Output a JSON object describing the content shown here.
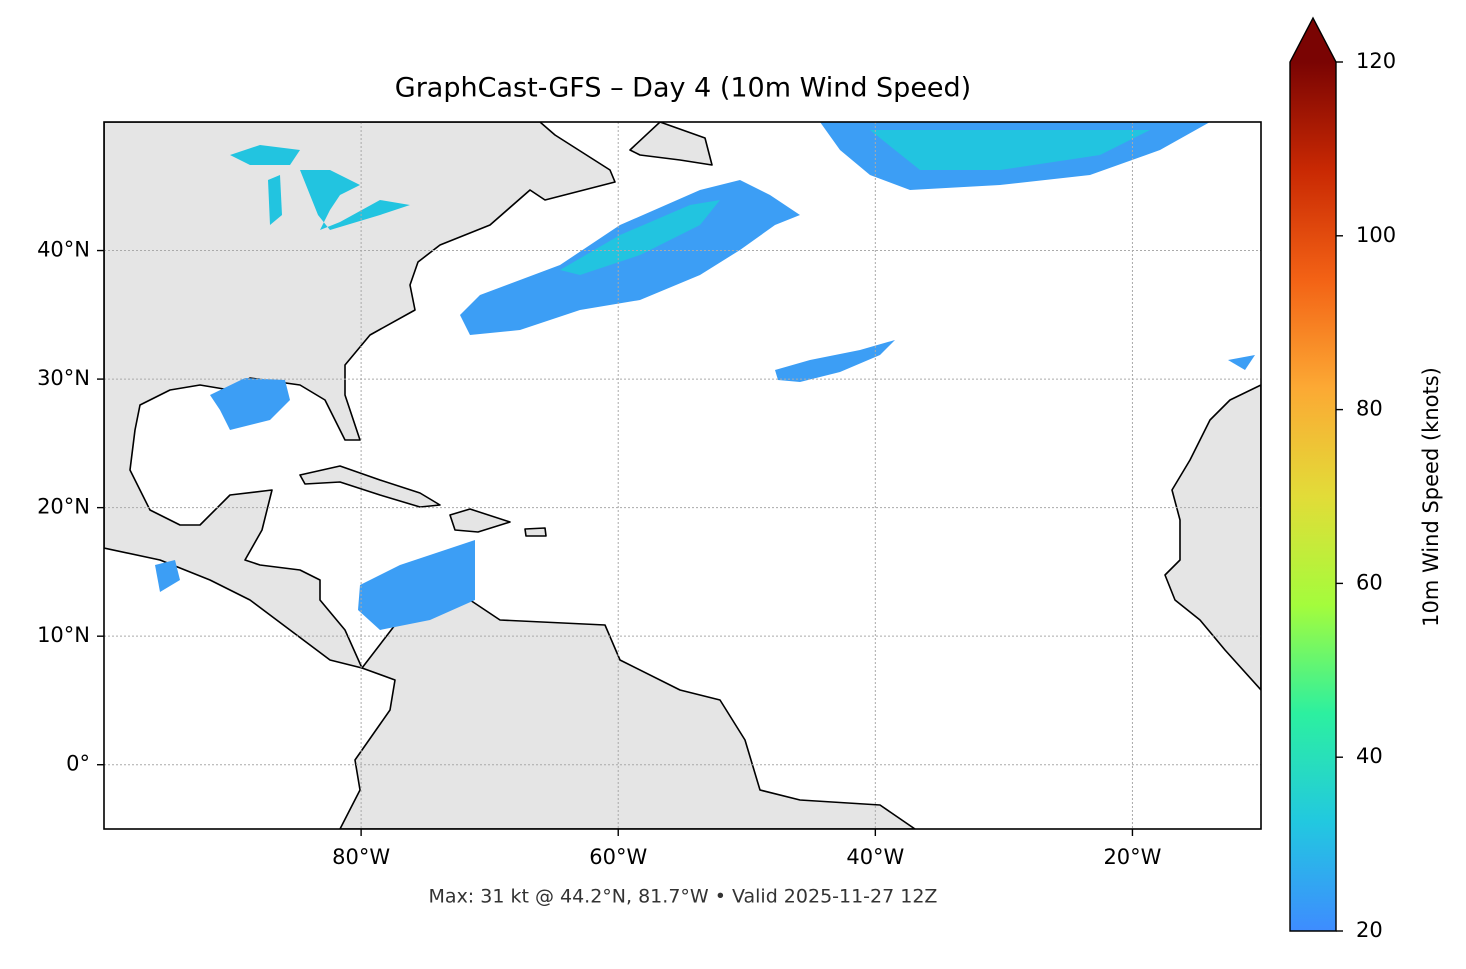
{
  "chart_data": {
    "type": "map",
    "title": "GraphCast-GFS – Day 4 (10m Wind Speed)",
    "footnote": "Max: 31 kt @ 44.2°N, 81.7°W • Valid 2025-11-27 12Z",
    "xlim": [
      -100,
      -10
    ],
    "ylim": [
      -5,
      50
    ],
    "xticks": [
      {
        "value": -80,
        "label": "80°W"
      },
      {
        "value": -60,
        "label": "60°W"
      },
      {
        "value": -40,
        "label": "40°W"
      },
      {
        "value": -20,
        "label": "20°W"
      }
    ],
    "yticks": [
      {
        "value": 0,
        "label": "0°"
      },
      {
        "value": 10,
        "label": "10°N"
      },
      {
        "value": 20,
        "label": "20°N"
      },
      {
        "value": 30,
        "label": "30°N"
      },
      {
        "value": 40,
        "label": "40°N"
      }
    ],
    "grid": true,
    "colorbar": {
      "label": "10m Wind Speed (knots)",
      "lim": [
        20,
        120
      ],
      "ticks": [
        20,
        40,
        60,
        80,
        100,
        120
      ],
      "extend": "max",
      "colors": [
        "#3e8cff",
        "#22c8e0",
        "#2cf0a0",
        "#a4fc3c",
        "#e2dc38",
        "#fca934",
        "#f36215",
        "#c92903",
        "#7a0403"
      ]
    }
  }
}
